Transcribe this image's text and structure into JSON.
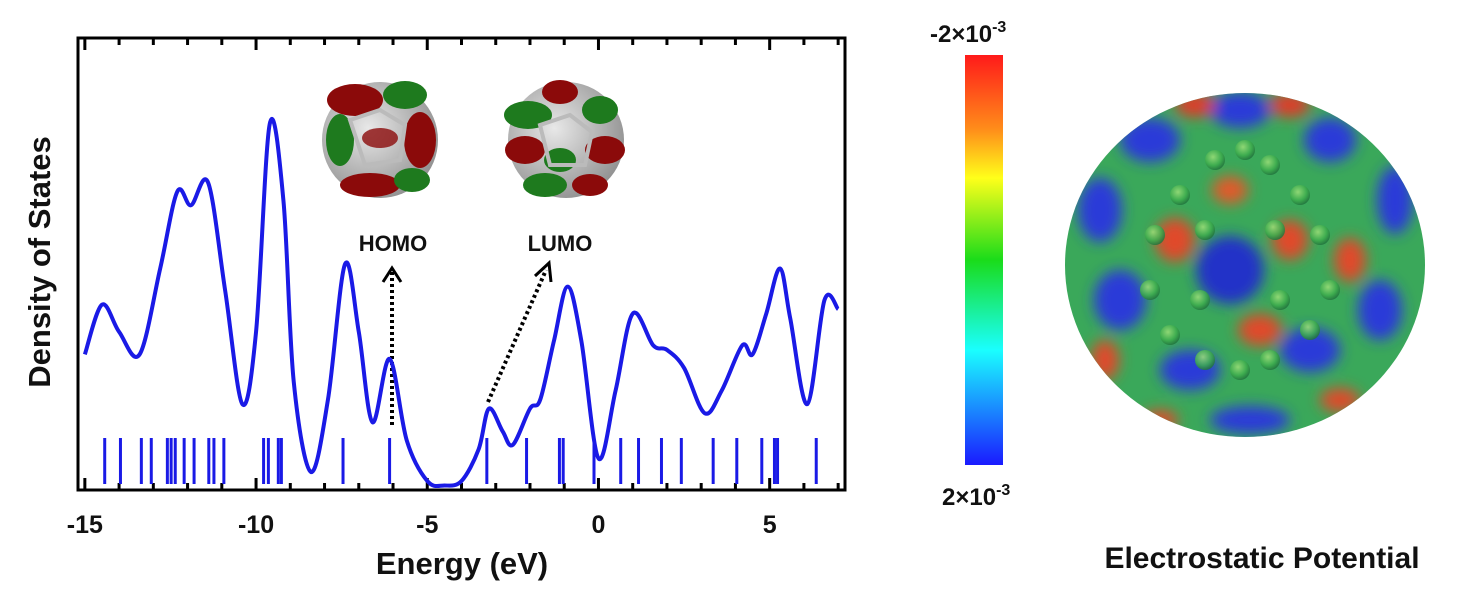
{
  "chart_data": {
    "type": "line",
    "xlabel": "Energy (eV)",
    "ylabel": "Density of States",
    "xlim": [
      -15.2,
      7.2
    ],
    "ylim": [
      0,
      100
    ],
    "xticks": [
      -15,
      -10,
      -5,
      0,
      5
    ],
    "xticks_minor": [
      -14,
      -13,
      -12,
      -11,
      -9,
      -8,
      -7,
      -6,
      -4,
      -3,
      -2,
      -1,
      1,
      2,
      3,
      4,
      6,
      7
    ],
    "x": [
      -15,
      -14.5,
      -14,
      -13.4,
      -12.8,
      -12.3,
      -11.9,
      -11.4,
      -10.9,
      -10.4,
      -10,
      -9.6,
      -9.2,
      -8.9,
      -8.4,
      -7.9,
      -7.4,
      -7.0,
      -6.6,
      -6.1,
      -5.6,
      -5,
      -4.5,
      -4,
      -3.5,
      -3.2,
      -2.8,
      -2.5,
      -2.0,
      -1.7,
      -1.3,
      -0.9,
      -0.5,
      0,
      0.5,
      1.0,
      1.6,
      2.0,
      2.5,
      3.1,
      3.6,
      4.2,
      4.5,
      4.9,
      5.3,
      5.6,
      6.1,
      6.6,
      7.0
    ],
    "series": [
      {
        "color": "#1a1ae6",
        "values": [
          30,
          41,
          35,
          30,
          49,
          66,
          63,
          68,
          44,
          19,
          35,
          81,
          64,
          24,
          4,
          20,
          50,
          35,
          15,
          29,
          11,
          2,
          1,
          2,
          9,
          18,
          13,
          10,
          18,
          20,
          33,
          45,
          33,
          7,
          22,
          39,
          32,
          31,
          27,
          17,
          22,
          32,
          30,
          39,
          49,
          38,
          19,
          42,
          40
        ]
      }
    ],
    "levels": {
      "color": "#1a1ae6",
      "x": [
        -14.42,
        -13.96,
        -13.35,
        -13.06,
        -12.59,
        -12.48,
        -12.36,
        -12.1,
        -11.81,
        -11.38,
        -11.23,
        -10.94,
        -9.78,
        -9.64,
        -9.35,
        -9.26,
        -7.46,
        -6.1,
        -3.26,
        -2.1,
        -1.14,
        -1.03,
        -0.13,
        0.65,
        1.17,
        1.84,
        2.42,
        3.35,
        4.04,
        4.77,
        5.14,
        5.23,
        6.36
      ]
    },
    "annotations": [
      "HOMO",
      "LUMO"
    ]
  },
  "electrostatic_potential": {
    "title": "Electrostatic Potential",
    "colorbar_top": {
      "mantissa": "-2×10",
      "exponent": "-3"
    },
    "colorbar_bottom": {
      "mantissa": "2×10",
      "exponent": "-3"
    }
  }
}
